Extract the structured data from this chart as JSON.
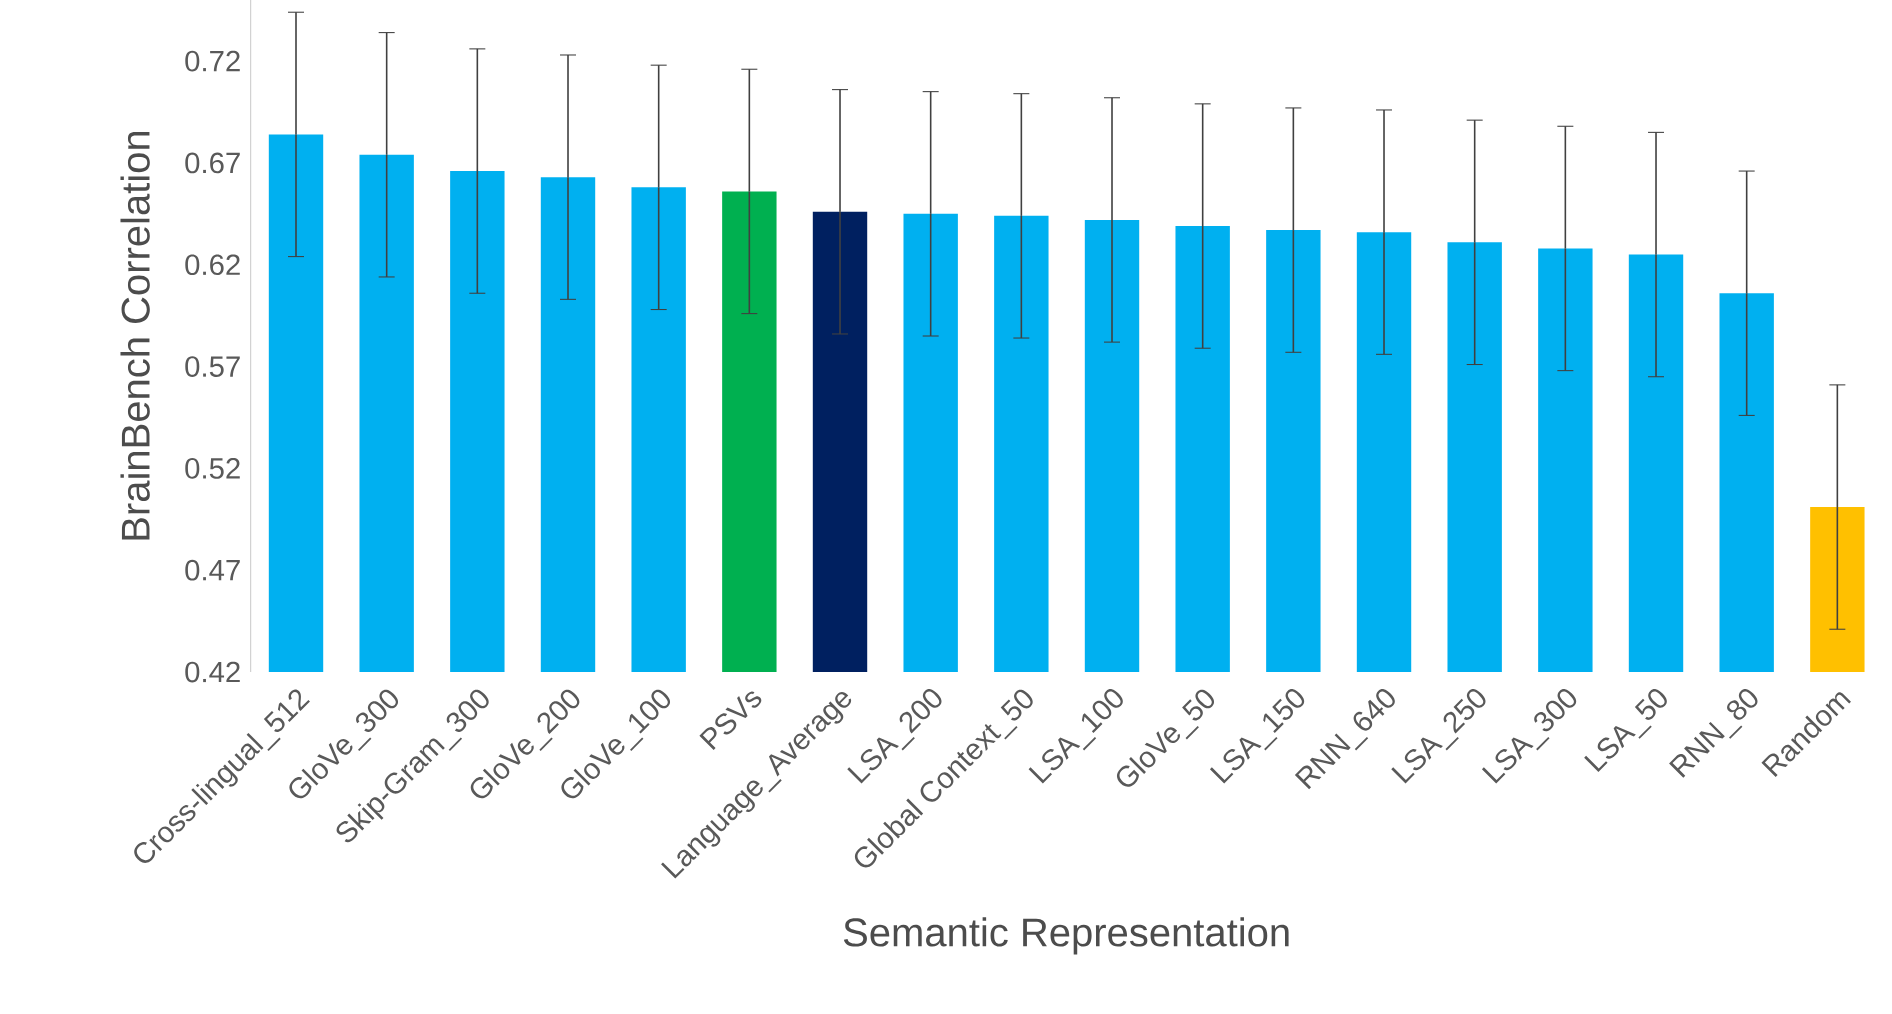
{
  "chart_data": {
    "type": "bar",
    "xlabel": "Semantic Representation",
    "ylabel": "BrainBench Correlation",
    "categories": [
      "Cross-lingual_512",
      "GloVe_300",
      "Skip-Gram_300",
      "GloVe_200",
      "GloVe_100",
      "PSVs",
      "Language_Average",
      "LSA_200",
      "Global Context_50",
      "LSA_100",
      "GloVe_50",
      "LSA_150",
      "RNN_640",
      "LSA_250",
      "LSA_300",
      "LSA_50",
      "RNN_80",
      "Random"
    ],
    "values": [
      0.684,
      0.674,
      0.666,
      0.663,
      0.658,
      0.656,
      0.646,
      0.645,
      0.644,
      0.642,
      0.639,
      0.637,
      0.636,
      0.631,
      0.628,
      0.625,
      0.606,
      0.501
    ],
    "errors": [
      0.06,
      0.06,
      0.06,
      0.06,
      0.06,
      0.06,
      0.06,
      0.06,
      0.06,
      0.06,
      0.06,
      0.06,
      0.06,
      0.06,
      0.06,
      0.06,
      0.06,
      0.06
    ],
    "colors": [
      "#00b0f0",
      "#00b0f0",
      "#00b0f0",
      "#00b0f0",
      "#00b0f0",
      "#00b050",
      "#002060",
      "#00b0f0",
      "#00b0f0",
      "#00b0f0",
      "#00b0f0",
      "#00b0f0",
      "#00b0f0",
      "#00b0f0",
      "#00b0f0",
      "#00b0f0",
      "#00b0f0",
      "#ffc000"
    ],
    "ylim": [
      0.42,
      0.75
    ],
    "yticks": [
      0.42,
      0.47,
      0.52,
      0.57,
      0.62,
      0.67,
      0.72
    ],
    "grid": false
  }
}
